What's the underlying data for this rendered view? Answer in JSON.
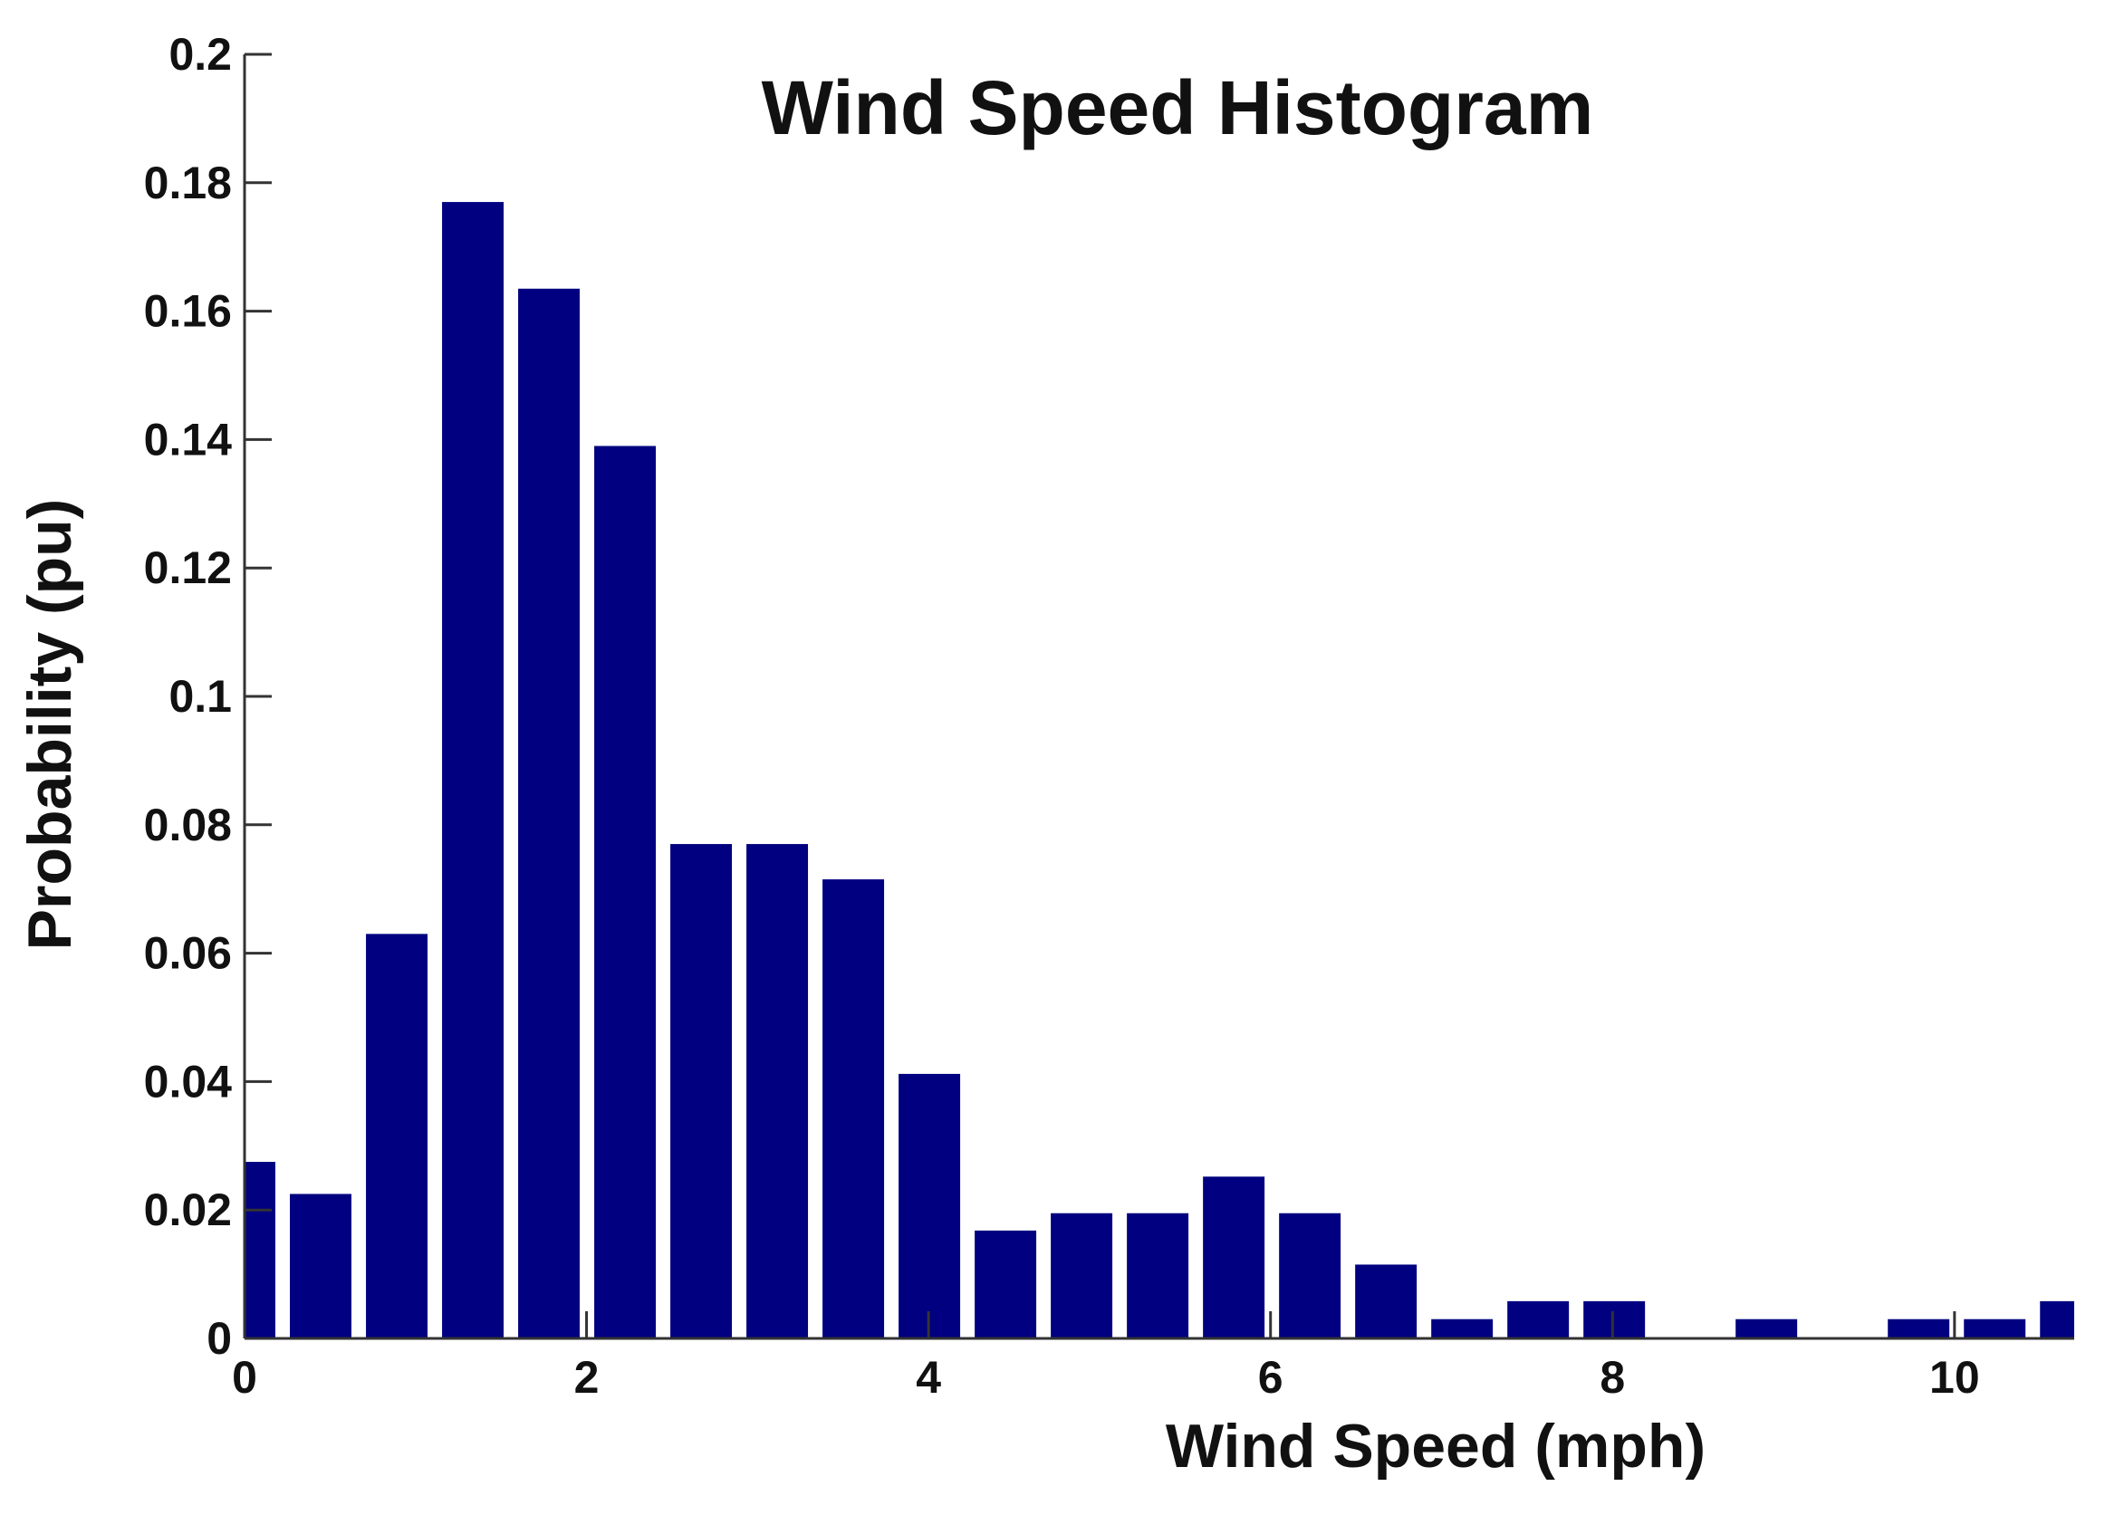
{
  "chart_data": {
    "type": "bar",
    "title": "Wind Speed Histogram",
    "xlabel": "Wind Speed (mph)",
    "ylabel": "Probability (pu)",
    "xlim": [
      0,
      10.7
    ],
    "ylim": [
      0,
      0.2
    ],
    "bar_width": 0.36,
    "xticks": [
      0,
      2,
      4,
      6,
      8,
      10
    ],
    "xtick_labels": [
      "0",
      "2",
      "4",
      "6",
      "8",
      "10"
    ],
    "yticks": [
      0,
      0.02,
      0.04,
      0.06,
      0.08,
      0.1,
      0.12,
      0.14,
      0.16,
      0.18,
      0.2
    ],
    "ytick_labels": [
      "0",
      "0.02",
      "0.04",
      "0.06",
      "0.08",
      "0.1",
      "0.12",
      "0.14",
      "0.16",
      "0.18",
      "0.2"
    ],
    "grid": false,
    "bar_color": "#000080",
    "x": [
      0.0,
      0.445,
      0.89,
      1.335,
      1.78,
      2.225,
      2.67,
      3.115,
      3.56,
      4.005,
      4.45,
      4.895,
      5.34,
      5.785,
      6.23,
      6.675,
      7.12,
      7.565,
      8.01,
      8.455,
      8.9,
      9.345,
      9.79,
      10.235,
      10.68
    ],
    "values": [
      0.0275,
      0.0225,
      0.063,
      0.177,
      0.1635,
      0.139,
      0.077,
      0.077,
      0.0715,
      0.0412,
      0.0168,
      0.0195,
      0.0195,
      0.0252,
      0.0195,
      0.0115,
      0.003,
      0.0058,
      0.0058,
      0,
      0.003,
      0,
      0.003,
      0.003,
      0.0058
    ]
  }
}
